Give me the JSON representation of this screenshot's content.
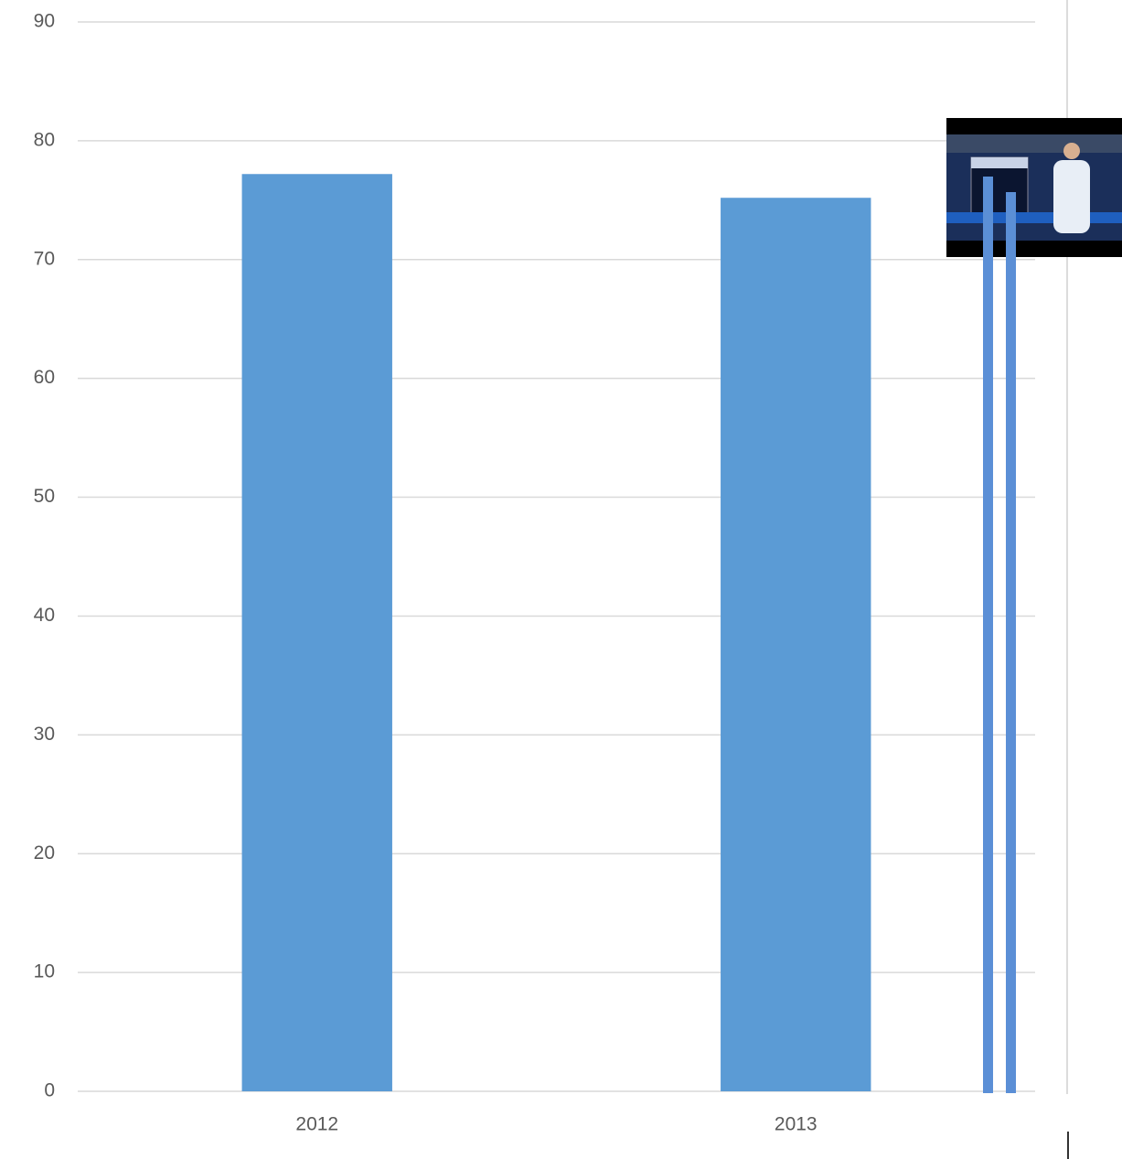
{
  "chart_data": {
    "type": "bar",
    "categories": [
      "2012",
      "2013"
    ],
    "values": [
      77.2,
      75.2
    ],
    "color": "#5b9bd5",
    "ylim": [
      0,
      90
    ],
    "yticks": [
      0,
      10,
      20,
      30,
      40,
      50,
      60,
      70,
      80,
      90
    ],
    "grid": true
  }
}
